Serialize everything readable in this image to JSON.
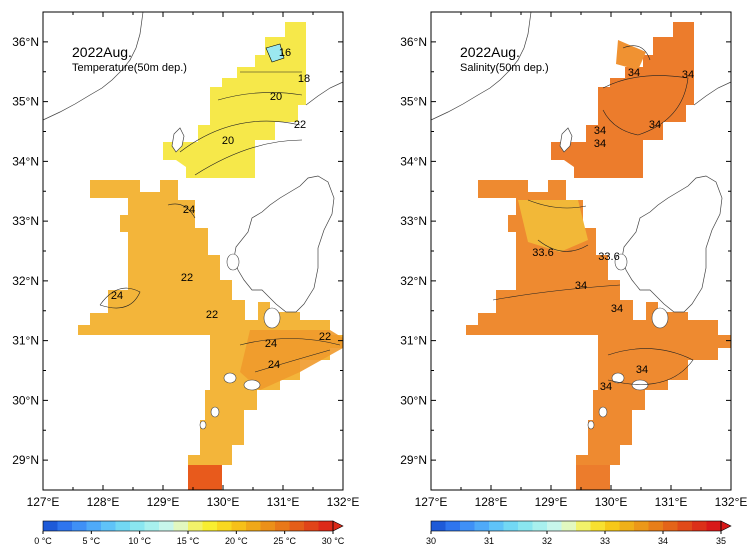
{
  "panels": [
    {
      "id": "temperature",
      "title": "2022Aug.",
      "subtitle": "Temperature(50m dep.)",
      "lat_labels": [
        "36°N",
        "35°N",
        "34°N",
        "33°N",
        "32°N",
        "31°N",
        "30°N",
        "29°N"
      ],
      "lon_labels": [
        "127°E",
        "128°E",
        "129°E",
        "130°E",
        "131°E",
        "132°E"
      ],
      "contour_labels": [
        "16",
        "18",
        "20",
        "20",
        "22",
        "24",
        "22",
        "22",
        "24",
        "22",
        "24",
        "24"
      ],
      "colorbar": {
        "labels": [
          "0 °C",
          "5 °C",
          "10 °C",
          "15 °C",
          "20 °C",
          "25 °C",
          "30 °C"
        ],
        "colors": [
          "#1e5ad8",
          "#2f75ee",
          "#3f90f6",
          "#4faaf8",
          "#5fc3f8",
          "#72d8f4",
          "#8ae6f0",
          "#a8f0ee",
          "#c8f6ec",
          "#e2f8c0",
          "#f2f26a",
          "#f8ee30",
          "#f8d820",
          "#f6c018",
          "#f0a818",
          "#ec9018",
          "#e87818",
          "#e45e18",
          "#e04418",
          "#dc2a18"
        ]
      }
    },
    {
      "id": "salinity",
      "title": "2022Aug.",
      "subtitle": "Salinity(50m dep.)",
      "lat_labels": [
        "36°N",
        "35°N",
        "34°N",
        "33°N",
        "32°N",
        "31°N",
        "30°N",
        "29°N"
      ],
      "lon_labels": [
        "127°E",
        "128°E",
        "129°E",
        "130°E",
        "131°E",
        "132°E"
      ],
      "contour_labels": [
        "34",
        "34",
        "34",
        "34",
        "34",
        "33.6",
        "33.6",
        "34",
        "34",
        "34",
        "34"
      ],
      "colorbar": {
        "labels": [
          "30",
          "31",
          "32",
          "33",
          "34",
          "35"
        ],
        "colors": [
          "#1e5ad8",
          "#2f75ee",
          "#3f90f6",
          "#4faaf8",
          "#5fc3f8",
          "#72d8f4",
          "#8ae6f0",
          "#a8f0ee",
          "#c8f6ec",
          "#e2f8c0",
          "#f2f26a",
          "#f8e030",
          "#f6c818",
          "#f0b018",
          "#ec9818",
          "#e87e18",
          "#e46418",
          "#e04a18",
          "#dc3018",
          "#d81818"
        ]
      }
    }
  ]
}
